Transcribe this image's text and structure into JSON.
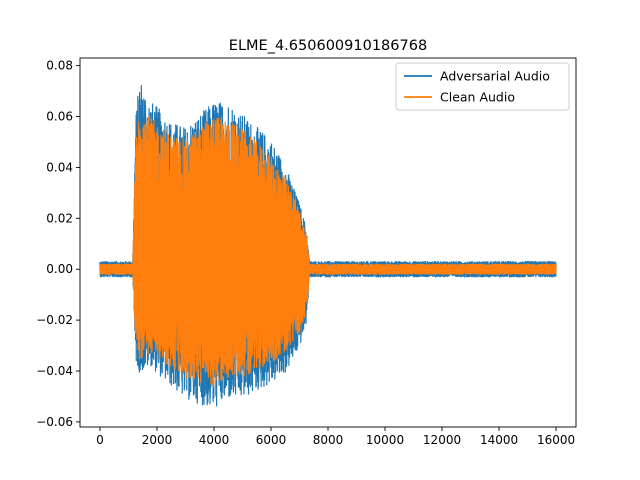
{
  "chart_data": {
    "type": "line",
    "title": "ELME_4.650600910186768",
    "xlabel": "",
    "ylabel": "",
    "xlim": [
      -700,
      16700
    ],
    "ylim": [
      -0.062,
      0.083
    ],
    "x_ticks": [
      0,
      2000,
      4000,
      6000,
      8000,
      10000,
      12000,
      14000,
      16000
    ],
    "x_tick_labels": [
      "0",
      "2000",
      "4000",
      "6000",
      "8000",
      "10000",
      "12000",
      "14000",
      "16000"
    ],
    "y_ticks": [
      -0.06,
      -0.04,
      -0.02,
      0.0,
      0.02,
      0.04,
      0.06,
      0.08
    ],
    "y_tick_labels": [
      "−0.06",
      "−0.04",
      "−0.02",
      "0.00",
      "0.02",
      "0.04",
      "0.06",
      "0.08"
    ],
    "grid": false,
    "legend_position": "top-right",
    "series": [
      {
        "name": "Adversarial Audio",
        "color": "#1f77b4",
        "x_range": [
          0,
          16000
        ],
        "envelope": {
          "x": [
            0,
            1150,
            1250,
            1400,
            1600,
            1800,
            2000,
            2500,
            3000,
            3500,
            4000,
            4500,
            5000,
            5500,
            6000,
            6500,
            7000,
            7250,
            7350,
            16000
          ],
          "upper": [
            0.003,
            0.003,
            0.06,
            0.076,
            0.07,
            0.066,
            0.064,
            0.058,
            0.056,
            0.061,
            0.066,
            0.066,
            0.061,
            0.056,
            0.051,
            0.041,
            0.026,
            0.016,
            0.003,
            0.003
          ],
          "lower": [
            -0.003,
            -0.003,
            -0.036,
            -0.041,
            -0.039,
            -0.038,
            -0.041,
            -0.046,
            -0.051,
            -0.053,
            -0.055,
            -0.051,
            -0.051,
            -0.048,
            -0.045,
            -0.041,
            -0.031,
            -0.021,
            -0.003,
            -0.003
          ]
        }
      },
      {
        "name": "Clean Audio",
        "color": "#ff7f0e",
        "x_range": [
          0,
          16000
        ],
        "envelope": {
          "x": [
            0,
            1150,
            1250,
            1400,
            1600,
            1800,
            2000,
            2500,
            3000,
            3500,
            4000,
            4500,
            5000,
            5500,
            6000,
            6500,
            7000,
            7250,
            7350,
            16000
          ],
          "upper": [
            0.002,
            0.002,
            0.05,
            0.068,
            0.062,
            0.059,
            0.058,
            0.053,
            0.051,
            0.056,
            0.061,
            0.059,
            0.055,
            0.05,
            0.045,
            0.036,
            0.023,
            0.014,
            0.002,
            0.002
          ],
          "lower": [
            -0.002,
            -0.002,
            -0.03,
            -0.036,
            -0.034,
            -0.033,
            -0.035,
            -0.039,
            -0.043,
            -0.045,
            -0.046,
            -0.043,
            -0.042,
            -0.04,
            -0.037,
            -0.033,
            -0.025,
            -0.017,
            -0.002,
            -0.002
          ]
        }
      }
    ]
  }
}
